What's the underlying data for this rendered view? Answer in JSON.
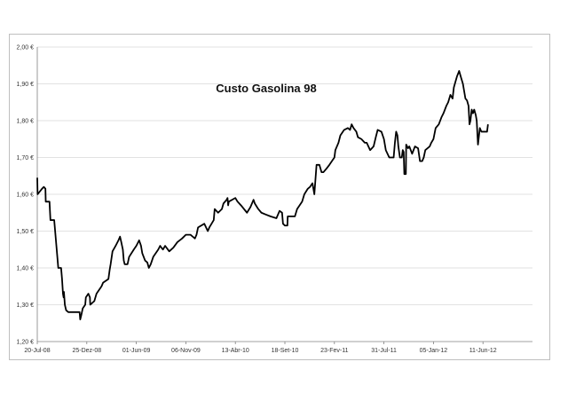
{
  "chart_data": {
    "type": "line",
    "title": "Custo Gasolina 98",
    "xlabel": "",
    "ylabel": "",
    "ylim": [
      1.2,
      2.0
    ],
    "grid": true,
    "legend": "none",
    "line_color": "#000000",
    "y_ticks": [
      {
        "value": 1.2,
        "label": "1,20 €"
      },
      {
        "value": 1.3,
        "label": "1,30 €"
      },
      {
        "value": 1.4,
        "label": "1,40 €"
      },
      {
        "value": 1.5,
        "label": "1,50 €"
      },
      {
        "value": 1.6,
        "label": "1,60 €"
      },
      {
        "value": 1.7,
        "label": "1,70 €"
      },
      {
        "value": 1.8,
        "label": "1,80 €"
      },
      {
        "value": 1.9,
        "label": "1,90 €"
      },
      {
        "value": 2.0,
        "label": "2,00 €"
      }
    ],
    "x_ticks": [
      {
        "value": "2008-07-20",
        "label": "20-Jul-08"
      },
      {
        "value": "2008-12-25",
        "label": "25-Dez-08"
      },
      {
        "value": "2009-06-01",
        "label": "01-Jun-09"
      },
      {
        "value": "2009-11-06",
        "label": "06-Nov-09"
      },
      {
        "value": "2010-04-13",
        "label": "13-Abr-10"
      },
      {
        "value": "2010-09-18",
        "label": "18-Set-10"
      },
      {
        "value": "2011-02-23",
        "label": "23-Fev-11"
      },
      {
        "value": "2011-07-31",
        "label": "31-Jul-11"
      },
      {
        "value": "2012-01-05",
        "label": "05-Jan-12"
      },
      {
        "value": "2012-06-11",
        "label": "11-Jun-12"
      }
    ],
    "series": [
      {
        "points": [
          [
            "2008-07-20",
            1.645
          ],
          [
            "2008-07-21",
            1.6
          ],
          [
            "2008-08-04",
            1.615
          ],
          [
            "2008-08-10",
            1.62
          ],
          [
            "2008-08-15",
            1.615
          ],
          [
            "2008-08-16",
            1.58
          ],
          [
            "2008-08-28",
            1.58
          ],
          [
            "2008-08-31",
            1.53
          ],
          [
            "2008-09-12",
            1.53
          ],
          [
            "2008-09-19",
            1.46
          ],
          [
            "2008-09-25",
            1.4
          ],
          [
            "2008-10-04",
            1.4
          ],
          [
            "2008-10-07",
            1.37
          ],
          [
            "2008-10-10",
            1.33
          ],
          [
            "2008-10-12",
            1.32
          ],
          [
            "2008-10-13",
            1.335
          ],
          [
            "2008-10-16",
            1.3
          ],
          [
            "2008-10-20",
            1.285
          ],
          [
            "2008-10-27",
            1.28
          ],
          [
            "2008-12-02",
            1.28
          ],
          [
            "2008-12-04",
            1.26
          ],
          [
            "2008-12-07",
            1.27
          ],
          [
            "2008-12-12",
            1.29
          ],
          [
            "2008-12-20",
            1.3
          ],
          [
            "2008-12-22",
            1.32
          ],
          [
            "2008-12-30",
            1.33
          ],
          [
            "2009-01-04",
            1.32
          ],
          [
            "2009-01-05",
            1.3
          ],
          [
            "2009-01-18",
            1.31
          ],
          [
            "2009-01-25",
            1.33
          ],
          [
            "2009-02-10",
            1.35
          ],
          [
            "2009-02-15",
            1.36
          ],
          [
            "2009-03-04",
            1.37
          ],
          [
            "2009-03-08",
            1.395
          ],
          [
            "2009-03-11",
            1.41
          ],
          [
            "2009-03-17",
            1.445
          ],
          [
            "2009-03-27",
            1.46
          ],
          [
            "2009-04-05",
            1.475
          ],
          [
            "2009-04-10",
            1.485
          ],
          [
            "2009-04-14",
            1.47
          ],
          [
            "2009-04-19",
            1.45
          ],
          [
            "2009-04-22",
            1.42
          ],
          [
            "2009-04-25",
            1.41
          ],
          [
            "2009-05-04",
            1.41
          ],
          [
            "2009-05-09",
            1.43
          ],
          [
            "2009-05-24",
            1.45
          ],
          [
            "2009-06-01",
            1.46
          ],
          [
            "2009-06-10",
            1.475
          ],
          [
            "2009-06-16",
            1.46
          ],
          [
            "2009-06-20",
            1.44
          ],
          [
            "2009-06-29",
            1.42
          ],
          [
            "2009-07-06",
            1.415
          ],
          [
            "2009-07-11",
            1.4
          ],
          [
            "2009-07-17",
            1.41
          ],
          [
            "2009-07-25",
            1.43
          ],
          [
            "2009-08-10",
            1.45
          ],
          [
            "2009-08-16",
            1.46
          ],
          [
            "2009-08-20",
            1.455
          ],
          [
            "2009-08-25",
            1.45
          ],
          [
            "2009-09-01",
            1.46
          ],
          [
            "2009-09-14",
            1.445
          ],
          [
            "2009-09-27",
            1.455
          ],
          [
            "2009-10-10",
            1.47
          ],
          [
            "2009-10-25",
            1.48
          ],
          [
            "2009-11-06",
            1.49
          ],
          [
            "2009-11-21",
            1.49
          ],
          [
            "2009-12-05",
            1.48
          ],
          [
            "2009-12-10",
            1.49
          ],
          [
            "2009-12-15",
            1.51
          ],
          [
            "2010-01-04",
            1.52
          ],
          [
            "2010-01-15",
            1.5
          ],
          [
            "2010-01-20",
            1.51
          ],
          [
            "2010-02-03",
            1.53
          ],
          [
            "2010-02-06",
            1.56
          ],
          [
            "2010-02-17",
            1.55
          ],
          [
            "2010-03-01",
            1.56
          ],
          [
            "2010-03-06",
            1.575
          ],
          [
            "2010-03-16",
            1.585
          ],
          [
            "2010-03-19",
            1.59
          ],
          [
            "2010-03-21",
            1.57
          ],
          [
            "2010-03-23",
            1.58
          ],
          [
            "2010-04-13",
            1.59
          ],
          [
            "2010-04-20",
            1.58
          ],
          [
            "2010-05-01",
            1.57
          ],
          [
            "2010-05-20",
            1.55
          ],
          [
            "2010-05-31",
            1.565
          ],
          [
            "2010-06-10",
            1.585
          ],
          [
            "2010-06-14",
            1.575
          ],
          [
            "2010-06-25",
            1.56
          ],
          [
            "2010-07-05",
            1.55
          ],
          [
            "2010-07-19",
            1.545
          ],
          [
            "2010-08-03",
            1.54
          ],
          [
            "2010-08-22",
            1.535
          ],
          [
            "2010-09-01",
            1.555
          ],
          [
            "2010-09-09",
            1.55
          ],
          [
            "2010-09-12",
            1.52
          ],
          [
            "2010-09-18",
            1.515
          ],
          [
            "2010-09-26",
            1.515
          ],
          [
            "2010-09-27",
            1.54
          ],
          [
            "2010-10-20",
            1.54
          ],
          [
            "2010-10-27",
            1.56
          ],
          [
            "2010-11-12",
            1.58
          ],
          [
            "2010-11-19",
            1.6
          ],
          [
            "2010-11-30",
            1.615
          ],
          [
            "2010-12-07",
            1.62
          ],
          [
            "2010-12-15",
            1.63
          ],
          [
            "2010-12-21",
            1.6
          ],
          [
            "2010-12-28",
            1.68
          ],
          [
            "2011-01-06",
            1.68
          ],
          [
            "2011-01-13",
            1.66
          ],
          [
            "2011-01-19",
            1.66
          ],
          [
            "2011-01-29",
            1.67
          ],
          [
            "2011-02-07",
            1.68
          ],
          [
            "2011-02-15",
            1.69
          ],
          [
            "2011-02-23",
            1.7
          ],
          [
            "2011-02-26",
            1.72
          ],
          [
            "2011-03-08",
            1.74
          ],
          [
            "2011-03-14",
            1.76
          ],
          [
            "2011-03-26",
            1.775
          ],
          [
            "2011-04-07",
            1.78
          ],
          [
            "2011-04-14",
            1.775
          ],
          [
            "2011-04-19",
            1.79
          ],
          [
            "2011-04-25",
            1.78
          ],
          [
            "2011-05-04",
            1.77
          ],
          [
            "2011-05-09",
            1.755
          ],
          [
            "2011-05-20",
            1.75
          ],
          [
            "2011-05-31",
            1.74
          ],
          [
            "2011-06-06",
            1.74
          ],
          [
            "2011-06-17",
            1.72
          ],
          [
            "2011-06-28",
            1.73
          ],
          [
            "2011-07-05",
            1.755
          ],
          [
            "2011-07-11",
            1.775
          ],
          [
            "2011-07-23",
            1.77
          ],
          [
            "2011-07-31",
            1.75
          ],
          [
            "2011-08-06",
            1.72
          ],
          [
            "2011-08-17",
            1.7
          ],
          [
            "2011-08-31",
            1.7
          ],
          [
            "2011-09-04",
            1.74
          ],
          [
            "2011-09-08",
            1.77
          ],
          [
            "2011-09-12",
            1.76
          ],
          [
            "2011-09-15",
            1.73
          ],
          [
            "2011-09-20",
            1.7
          ],
          [
            "2011-09-26",
            1.7
          ],
          [
            "2011-09-29",
            1.72
          ],
          [
            "2011-10-02",
            1.715
          ],
          [
            "2011-10-04",
            1.655
          ],
          [
            "2011-10-09",
            1.655
          ],
          [
            "2011-10-10",
            1.735
          ],
          [
            "2011-10-16",
            1.725
          ],
          [
            "2011-10-20",
            1.73
          ],
          [
            "2011-10-29",
            1.71
          ],
          [
            "2011-11-07",
            1.73
          ],
          [
            "2011-11-17",
            1.725
          ],
          [
            "2011-11-23",
            1.69
          ],
          [
            "2011-11-30",
            1.69
          ],
          [
            "2011-12-05",
            1.7
          ],
          [
            "2011-12-10",
            1.72
          ],
          [
            "2011-12-24",
            1.73
          ],
          [
            "2011-12-29",
            1.74
          ],
          [
            "2012-01-05",
            1.75
          ],
          [
            "2012-01-12",
            1.78
          ],
          [
            "2012-01-22",
            1.79
          ],
          [
            "2012-01-31",
            1.81
          ],
          [
            "2012-02-06",
            1.82
          ],
          [
            "2012-02-15",
            1.84
          ],
          [
            "2012-02-21",
            1.85
          ],
          [
            "2012-02-28",
            1.87
          ],
          [
            "2012-03-06",
            1.86
          ],
          [
            "2012-03-10",
            1.89
          ],
          [
            "2012-03-15",
            1.905
          ],
          [
            "2012-03-20",
            1.92
          ],
          [
            "2012-03-27",
            1.935
          ],
          [
            "2012-04-01",
            1.92
          ],
          [
            "2012-04-08",
            1.9
          ],
          [
            "2012-04-13",
            1.875
          ],
          [
            "2012-04-16",
            1.86
          ],
          [
            "2012-04-21",
            1.855
          ],
          [
            "2012-04-26",
            1.84
          ],
          [
            "2012-04-29",
            1.79
          ],
          [
            "2012-05-02",
            1.8
          ],
          [
            "2012-05-06",
            1.83
          ],
          [
            "2012-05-10",
            1.82
          ],
          [
            "2012-05-14",
            1.83
          ],
          [
            "2012-05-19",
            1.815
          ],
          [
            "2012-05-22",
            1.8
          ],
          [
            "2012-05-26",
            1.735
          ],
          [
            "2012-05-28",
            1.75
          ],
          [
            "2012-06-01",
            1.78
          ],
          [
            "2012-06-06",
            1.77
          ],
          [
            "2012-06-11",
            1.77
          ],
          [
            "2012-06-24",
            1.77
          ],
          [
            "2012-06-27",
            1.79
          ]
        ]
      }
    ]
  }
}
